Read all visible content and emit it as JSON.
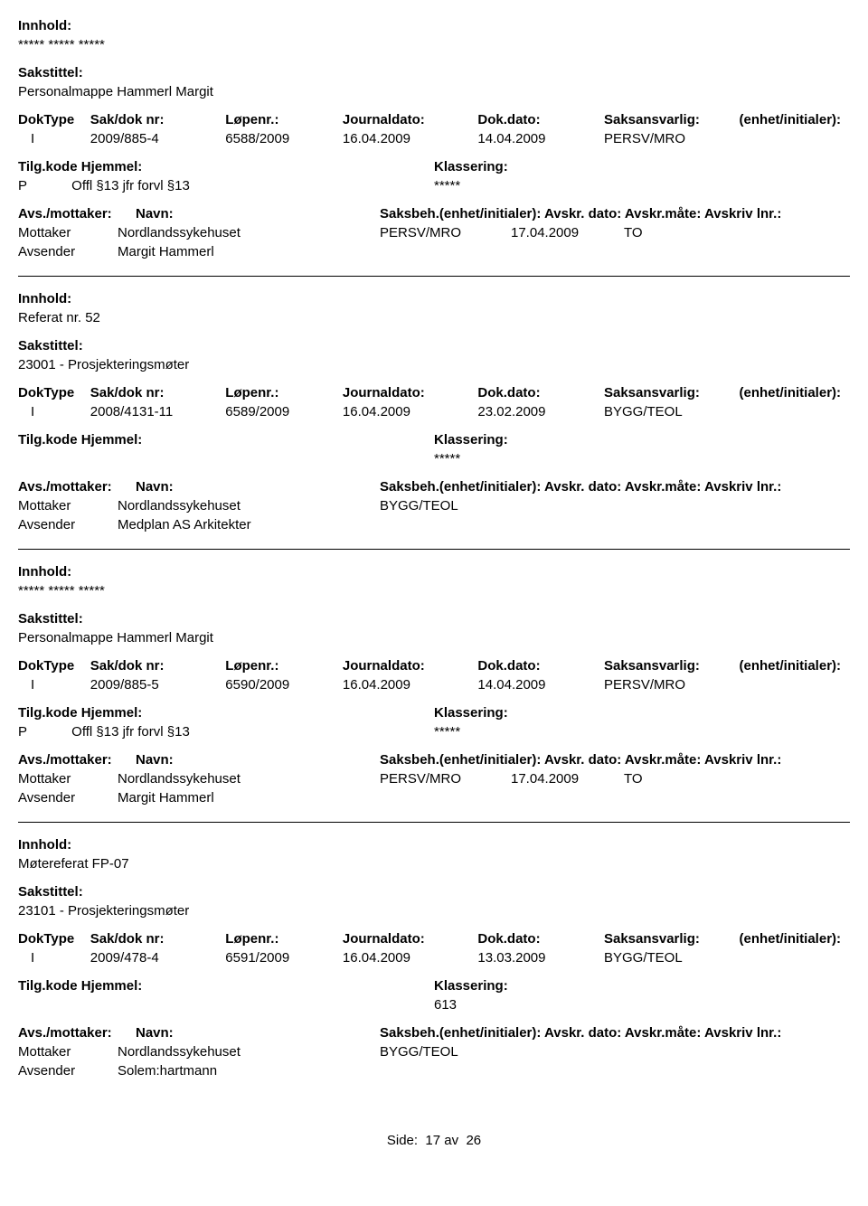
{
  "labels": {
    "innhold": "Innhold:",
    "sakstittel": "Sakstittel:",
    "doktype": "DokType",
    "sakdok": "Sak/dok nr:",
    "lopenr": "Løpenr.:",
    "journaldato": "Journaldato:",
    "dokdato": "Dok.dato:",
    "saksansvarlig": "Saksansvarlig:",
    "enhet": "(enhet/initialer):",
    "tilgkode": "Tilg.kode",
    "hjemmel": "Hjemmel:",
    "klassering": "Klassering:",
    "avsmottaker": "Avs./mottaker:",
    "navn": "Navn:",
    "saksbeh_header": "Saksbeh.(enhet/initialer): Avskr. dato:  Avskr.måte: Avskriv lnr.:"
  },
  "entries": [
    {
      "innhold": "***** ***** *****",
      "sakstittel": "Personalmappe Hammerl Margit",
      "doktype": "I",
      "sakdok": "2009/885-4",
      "lopenr": "6588/2009",
      "journaldato": "16.04.2009",
      "dokdato": "14.04.2009",
      "saksansvarlig": "PERSV/MRO",
      "tilgkode": "P",
      "hjemmel": "Offl §13 jfr forvl §13",
      "klassering": "*****",
      "correspondents": [
        {
          "role": "Mottaker",
          "name": "Nordlandssykehuset",
          "saksbeh": "PERSV/MRO",
          "avskr_dato": "17.04.2009",
          "avskr_mate": "TO"
        },
        {
          "role": "Avsender",
          "name": "Margit Hammerl",
          "saksbeh": "",
          "avskr_dato": "",
          "avskr_mate": ""
        }
      ]
    },
    {
      "innhold": "Referat nr. 52",
      "sakstittel": "23001 - Prosjekteringsmøter",
      "doktype": "I",
      "sakdok": "2008/4131-11",
      "lopenr": "6589/2009",
      "journaldato": "16.04.2009",
      "dokdato": "23.02.2009",
      "saksansvarlig": "BYGG/TEOL",
      "tilgkode": "",
      "hjemmel": "",
      "klassering": "*****",
      "correspondents": [
        {
          "role": "Mottaker",
          "name": "Nordlandssykehuset",
          "saksbeh": "BYGG/TEOL",
          "avskr_dato": "",
          "avskr_mate": ""
        },
        {
          "role": "Avsender",
          "name": "Medplan AS Arkitekter",
          "saksbeh": "",
          "avskr_dato": "",
          "avskr_mate": ""
        }
      ]
    },
    {
      "innhold": "***** ***** *****",
      "sakstittel": "Personalmappe Hammerl Margit",
      "doktype": "I",
      "sakdok": "2009/885-5",
      "lopenr": "6590/2009",
      "journaldato": "16.04.2009",
      "dokdato": "14.04.2009",
      "saksansvarlig": "PERSV/MRO",
      "tilgkode": "P",
      "hjemmel": "Offl §13 jfr forvl §13",
      "klassering": "*****",
      "correspondents": [
        {
          "role": "Mottaker",
          "name": "Nordlandssykehuset",
          "saksbeh": "PERSV/MRO",
          "avskr_dato": "17.04.2009",
          "avskr_mate": "TO"
        },
        {
          "role": "Avsender",
          "name": "Margit Hammerl",
          "saksbeh": "",
          "avskr_dato": "",
          "avskr_mate": ""
        }
      ]
    },
    {
      "innhold": "Møtereferat FP-07",
      "sakstittel": "23101 - Prosjekteringsmøter",
      "doktype": "I",
      "sakdok": "2009/478-4",
      "lopenr": "6591/2009",
      "journaldato": "16.04.2009",
      "dokdato": "13.03.2009",
      "saksansvarlig": "BYGG/TEOL",
      "tilgkode": "",
      "hjemmel": "",
      "klassering": "613",
      "correspondents": [
        {
          "role": "Mottaker",
          "name": "Nordlandssykehuset",
          "saksbeh": "BYGG/TEOL",
          "avskr_dato": "",
          "avskr_mate": ""
        },
        {
          "role": "Avsender",
          "name": "Solem:hartmann",
          "saksbeh": "",
          "avskr_dato": "",
          "avskr_mate": ""
        }
      ]
    }
  ],
  "footer": {
    "side_label": "Side:",
    "page": "17",
    "av": "av",
    "total": "26"
  },
  "style": {
    "font_family": "Arial, Helvetica, sans-serif",
    "font_size_pt": 11,
    "text_color": "#000000",
    "background_color": "#ffffff",
    "separator_color": "#000000"
  }
}
